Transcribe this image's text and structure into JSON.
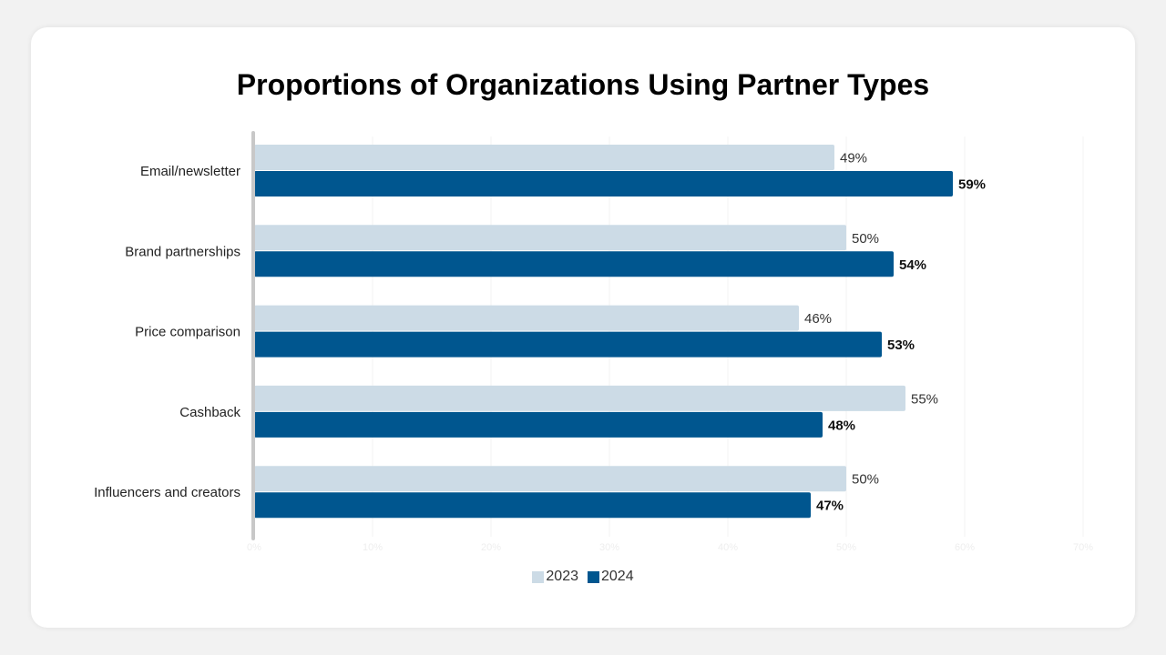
{
  "chart_data": {
    "type": "bar",
    "orientation": "horizontal",
    "title": "Proportions of Organizations Using Partner Types",
    "categories": [
      "Email/newsletter",
      "Brand partnerships",
      "Price comparison",
      "Cashback",
      "Influencers and creators"
    ],
    "series": [
      {
        "name": "2023",
        "values": [
          49,
          50,
          46,
          55,
          50
        ],
        "color": "#ccdbe6"
      },
      {
        "name": "2024",
        "values": [
          59,
          54,
          53,
          48,
          47
        ],
        "color": "#00568f"
      }
    ],
    "value_labels": {
      "2023": [
        "49%",
        "50%",
        "46%",
        "55%",
        "50%"
      ],
      "2024": [
        "59%",
        "54%",
        "53%",
        "48%",
        "47%"
      ]
    },
    "xlim": [
      0,
      70
    ],
    "x_ticks": [
      "0%",
      "10%",
      "20%",
      "30%",
      "40%",
      "50%",
      "60%",
      "70%"
    ],
    "grid": true,
    "legend_position": "bottom-center"
  }
}
